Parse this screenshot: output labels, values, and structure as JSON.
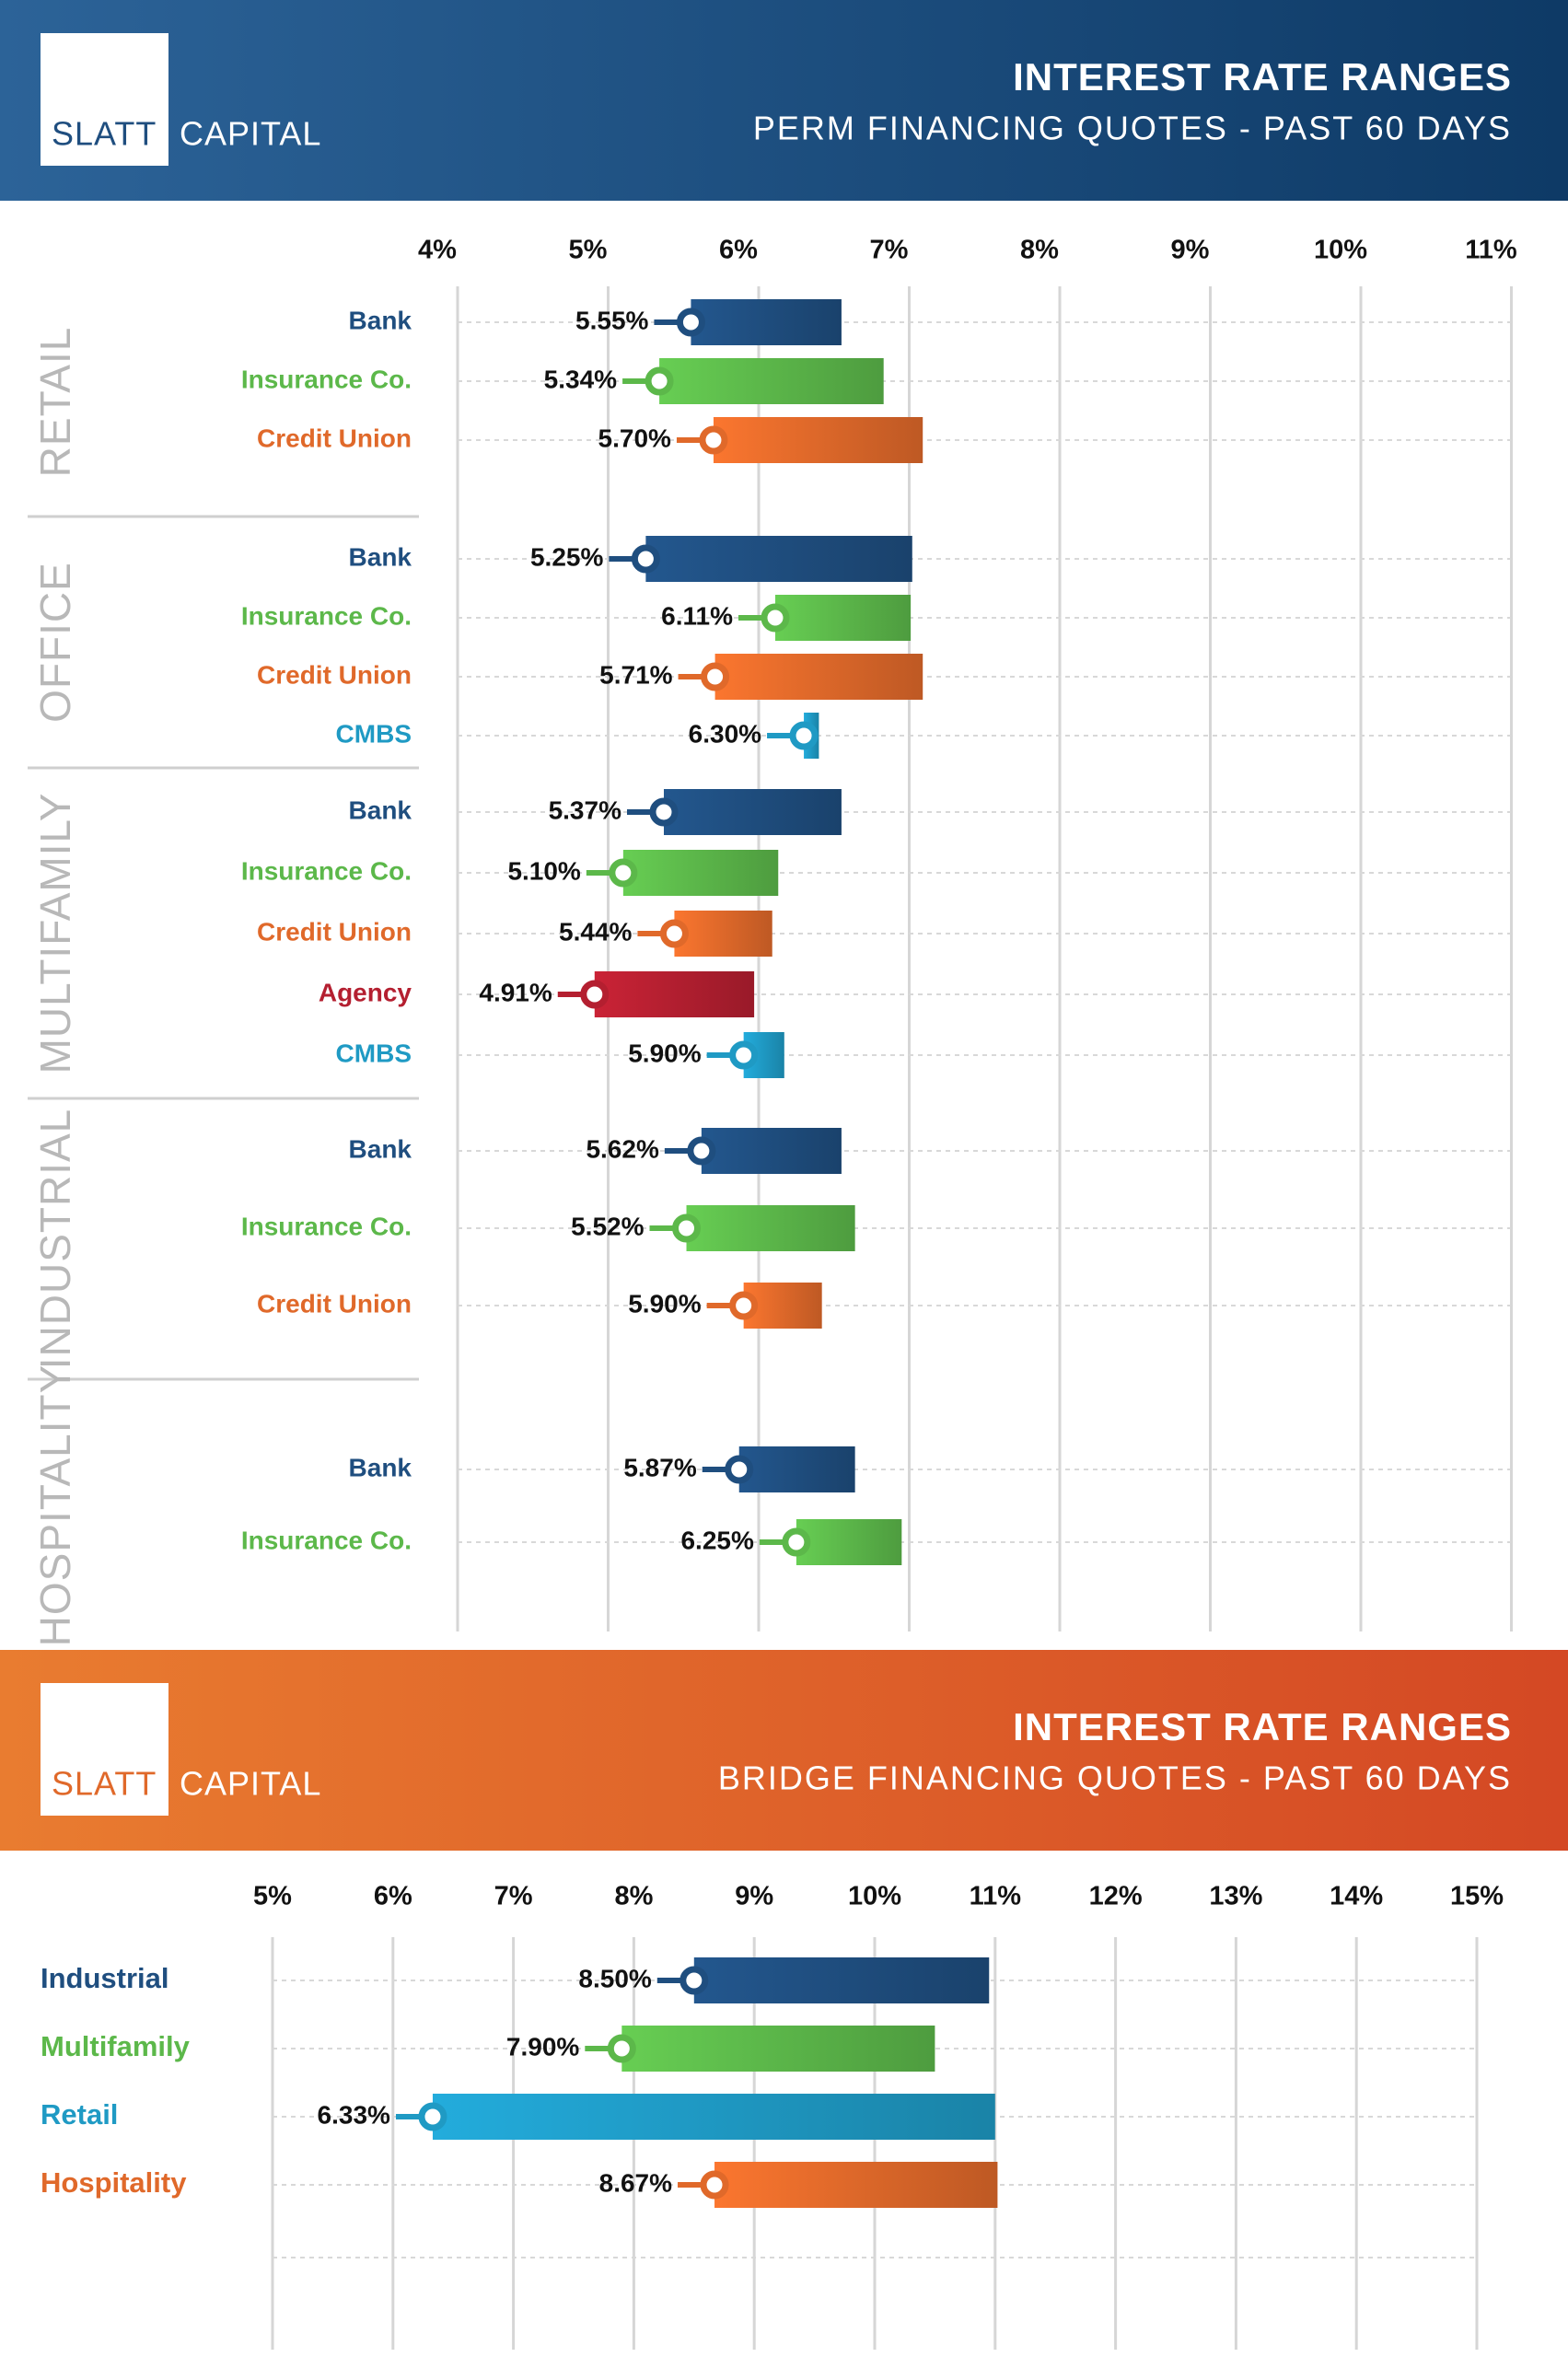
{
  "brand": {
    "name": "SLATT",
    "tagline": "CAPITAL"
  },
  "chart_data": [
    {
      "type": "range_bar",
      "title": "INTEREST RATE RANGES",
      "subtitle": "PERM FINANCING QUOTES - PAST 60 DAYS",
      "xlim": [
        4,
        11
      ],
      "xticks": [
        {
          "value": 4,
          "label": "4%"
        },
        {
          "value": 5,
          "label": "5%"
        },
        {
          "value": 6,
          "label": "6%"
        },
        {
          "value": 7,
          "label": "7%"
        },
        {
          "value": 8,
          "label": "8%"
        },
        {
          "value": 9,
          "label": "9%"
        },
        {
          "value": 10,
          "label": "10%"
        },
        {
          "value": 11,
          "label": "11%"
        }
      ],
      "grid": true,
      "groups": [
        {
          "name": "RETAIL",
          "rows": [
            {
              "label": "Bank",
              "color": "#1f4e7f",
              "low": 5.55,
              "high": 6.55,
              "low_label": "5.55%"
            },
            {
              "label": "Insurance Co.",
              "color": "#5cb84a",
              "low": 5.34,
              "high": 6.83,
              "low_label": "5.34%"
            },
            {
              "label": "Credit Union",
              "color": "#e0692a",
              "low": 5.7,
              "high": 7.09,
              "low_label": "5.70%"
            }
          ]
        },
        {
          "name": "OFFICE",
          "rows": [
            {
              "label": "Bank",
              "color": "#1f4e7f",
              "low": 5.25,
              "high": 7.02,
              "low_label": "5.25%"
            },
            {
              "label": "Insurance Co.",
              "color": "#5cb84a",
              "low": 6.11,
              "high": 7.01,
              "low_label": "6.11%"
            },
            {
              "label": "Credit Union",
              "color": "#e0692a",
              "low": 5.71,
              "high": 7.09,
              "low_label": "5.71%"
            },
            {
              "label": "CMBS",
              "color": "#1f9ac4",
              "low": 6.3,
              "high": 6.4,
              "low_label": "6.30%"
            }
          ]
        },
        {
          "name": "MULTIFAMILY",
          "rows": [
            {
              "label": "Bank",
              "color": "#1f4e7f",
              "low": 5.37,
              "high": 6.55,
              "low_label": "5.37%"
            },
            {
              "label": "Insurance Co.",
              "color": "#5cb84a",
              "low": 5.1,
              "high": 6.13,
              "low_label": "5.10%"
            },
            {
              "label": "Credit Union",
              "color": "#e0692a",
              "low": 5.44,
              "high": 6.09,
              "low_label": "5.44%"
            },
            {
              "label": "Agency",
              "color": "#b41f30",
              "low": 4.91,
              "high": 5.97,
              "low_label": "4.91%"
            },
            {
              "label": "CMBS",
              "color": "#1f9ac4",
              "low": 5.9,
              "high": 6.17,
              "low_label": "5.90%"
            }
          ]
        },
        {
          "name": "INDUSTRIAL",
          "rows": [
            {
              "label": "Bank",
              "color": "#1f4e7f",
              "low": 5.62,
              "high": 6.55,
              "low_label": "5.62%"
            },
            {
              "label": "Insurance Co.",
              "color": "#5cb84a",
              "low": 5.52,
              "high": 6.64,
              "low_label": "5.52%"
            },
            {
              "label": "Credit Union",
              "color": "#e0692a",
              "low": 5.9,
              "high": 6.42,
              "low_label": "5.90%"
            }
          ]
        },
        {
          "name": "HOSPITALITY",
          "rows": [
            {
              "label": "Bank",
              "color": "#1f4e7f",
              "low": 5.87,
              "high": 6.64,
              "low_label": "5.87%"
            },
            {
              "label": "Insurance Co.",
              "color": "#5cb84a",
              "low": 6.25,
              "high": 6.95,
              "low_label": "6.25%"
            }
          ]
        }
      ]
    },
    {
      "type": "range_bar",
      "title": "INTEREST RATE RANGES",
      "subtitle": "BRIDGE FINANCING QUOTES - PAST 60 DAYS",
      "xlim": [
        5,
        15
      ],
      "xticks": [
        {
          "value": 5,
          "label": "5%"
        },
        {
          "value": 6,
          "label": "6%"
        },
        {
          "value": 7,
          "label": "7%"
        },
        {
          "value": 8,
          "label": "8%"
        },
        {
          "value": 9,
          "label": "9%"
        },
        {
          "value": 10,
          "label": "10%"
        },
        {
          "value": 11,
          "label": "11%"
        },
        {
          "value": 12,
          "label": "12%"
        },
        {
          "value": 13,
          "label": "13%"
        },
        {
          "value": 14,
          "label": "14%"
        },
        {
          "value": 15,
          "label": "15%"
        }
      ],
      "grid": true,
      "rows": [
        {
          "label": "Industrial",
          "color": "#1f4e7f",
          "low": 8.5,
          "high": 10.95,
          "low_label": "8.50%"
        },
        {
          "label": "Multifamily",
          "color": "#5cb84a",
          "low": 7.9,
          "high": 10.5,
          "low_label": "7.90%"
        },
        {
          "label": "Retail",
          "color": "#1f9ac4",
          "low": 6.33,
          "high": 11.0,
          "low_label": "6.33%"
        },
        {
          "label": "Hospitality",
          "color": "#e0692a",
          "low": 8.67,
          "high": 11.02,
          "low_label": "8.67%"
        }
      ]
    }
  ]
}
